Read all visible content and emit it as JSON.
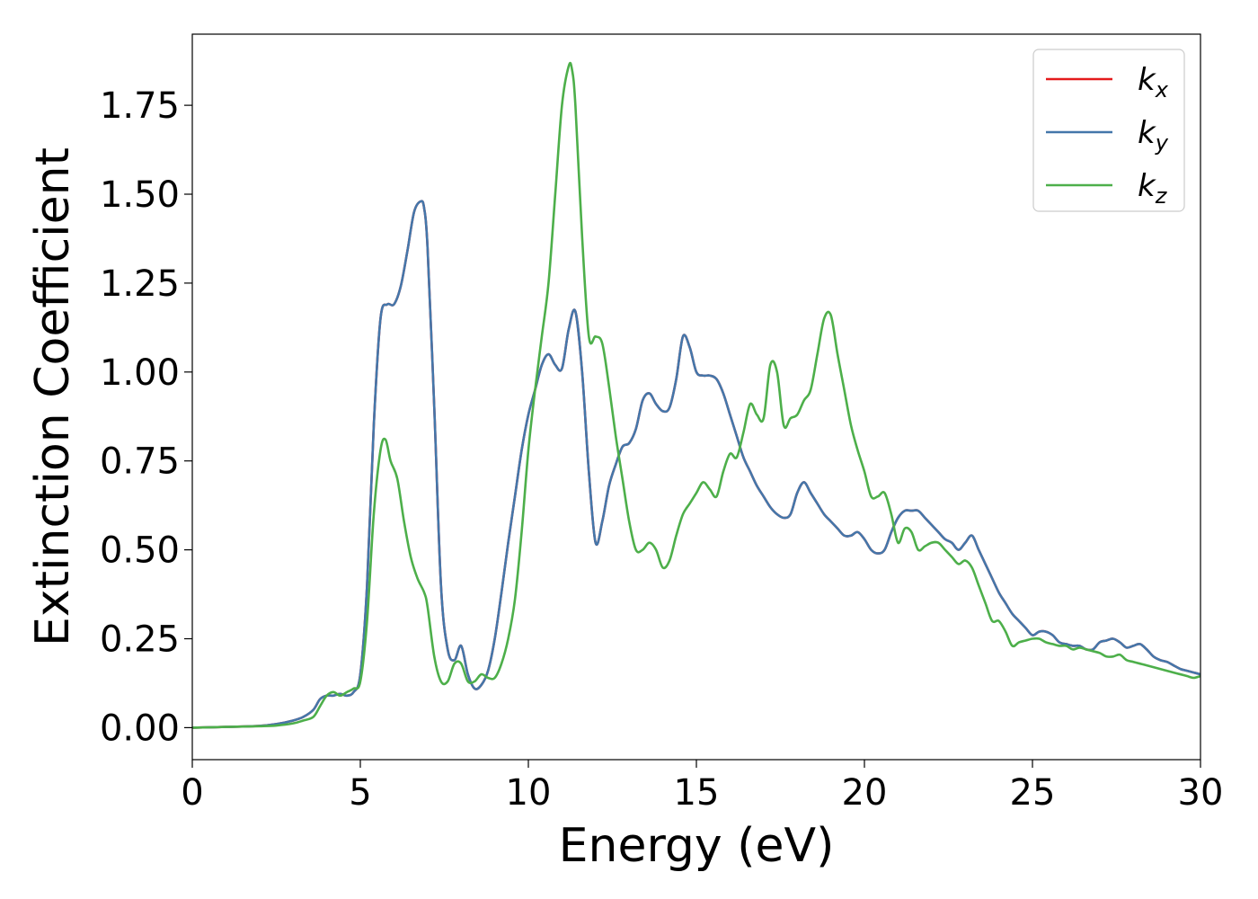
{
  "chart_data": {
    "type": "line",
    "xlabel": "Energy (eV)",
    "ylabel": "Extinction Coefficient",
    "xlim": [
      0,
      30
    ],
    "ylim": [
      -0.09,
      1.95
    ],
    "xticks": [
      0,
      5,
      10,
      15,
      20,
      25,
      30
    ],
    "xtick_labels": [
      "0",
      "5",
      "10",
      "15",
      "20",
      "25",
      "30"
    ],
    "yticks": [
      0,
      0.25,
      0.5,
      0.75,
      1.0,
      1.25,
      1.5,
      1.75
    ],
    "ytick_labels": [
      "0.00",
      "0.25",
      "0.50",
      "0.75",
      "1.00",
      "1.25",
      "1.50",
      "1.75"
    ],
    "grid": false,
    "legend_position": "top-right",
    "series": [
      {
        "name": "k_x",
        "label_base": "k",
        "label_sub": "x",
        "color": "#e41a1c",
        "x": [
          0,
          1,
          2,
          2.5,
          3,
          3.3,
          3.6,
          3.8,
          4.0,
          4.2,
          4.4,
          4.6,
          4.8,
          5.0,
          5.2,
          5.4,
          5.6,
          5.8,
          6.0,
          6.2,
          6.4,
          6.6,
          6.8,
          6.9,
          7.0,
          7.2,
          7.4,
          7.6,
          7.8,
          8.0,
          8.2,
          8.4,
          8.6,
          8.8,
          9.0,
          9.2,
          9.4,
          9.6,
          9.8,
          10.0,
          10.2,
          10.4,
          10.6,
          10.8,
          11.0,
          11.2,
          11.4,
          11.6,
          11.8,
          12.0,
          12.2,
          12.4,
          12.6,
          12.8,
          13.0,
          13.2,
          13.4,
          13.6,
          13.8,
          14.0,
          14.2,
          14.4,
          14.6,
          14.8,
          15.0,
          15.2,
          15.4,
          15.6,
          15.8,
          16.0,
          16.2,
          16.4,
          16.6,
          16.8,
          17.0,
          17.2,
          17.4,
          17.6,
          17.8,
          18.0,
          18.2,
          18.4,
          18.6,
          18.8,
          19.0,
          19.2,
          19.4,
          19.6,
          19.8,
          20.0,
          20.2,
          20.4,
          20.6,
          20.8,
          21.0,
          21.2,
          21.4,
          21.6,
          21.8,
          22.0,
          22.2,
          22.4,
          22.6,
          22.8,
          23.0,
          23.2,
          23.4,
          23.6,
          23.8,
          24.0,
          24.2,
          24.4,
          24.6,
          24.8,
          25.0,
          25.2,
          25.4,
          25.6,
          25.8,
          26.0,
          26.2,
          26.4,
          26.6,
          26.8,
          27.0,
          27.2,
          27.4,
          27.6,
          27.8,
          28.0,
          28.2,
          28.4,
          28.6,
          28.8,
          29.0,
          29.2,
          29.4,
          29.6,
          29.8,
          30.0
        ],
        "y": [
          0.0,
          0.002,
          0.005,
          0.01,
          0.02,
          0.03,
          0.05,
          0.08,
          0.09,
          0.09,
          0.095,
          0.09,
          0.1,
          0.15,
          0.4,
          0.85,
          1.15,
          1.19,
          1.19,
          1.24,
          1.34,
          1.45,
          1.48,
          1.46,
          1.35,
          0.9,
          0.4,
          0.22,
          0.19,
          0.23,
          0.15,
          0.11,
          0.12,
          0.16,
          0.25,
          0.38,
          0.52,
          0.65,
          0.78,
          0.88,
          0.95,
          1.02,
          1.05,
          1.02,
          1.01,
          1.12,
          1.17,
          1.0,
          0.72,
          0.52,
          0.58,
          0.68,
          0.74,
          0.79,
          0.8,
          0.84,
          0.92,
          0.94,
          0.91,
          0.89,
          0.9,
          0.98,
          1.1,
          1.07,
          1.0,
          0.99,
          0.99,
          0.98,
          0.94,
          0.88,
          0.82,
          0.76,
          0.72,
          0.68,
          0.65,
          0.62,
          0.6,
          0.59,
          0.6,
          0.66,
          0.69,
          0.66,
          0.63,
          0.6,
          0.58,
          0.56,
          0.54,
          0.54,
          0.55,
          0.53,
          0.5,
          0.49,
          0.5,
          0.55,
          0.59,
          0.61,
          0.61,
          0.61,
          0.59,
          0.57,
          0.55,
          0.53,
          0.52,
          0.5,
          0.52,
          0.54,
          0.5,
          0.46,
          0.42,
          0.38,
          0.35,
          0.32,
          0.3,
          0.28,
          0.26,
          0.27,
          0.27,
          0.26,
          0.24,
          0.235,
          0.23,
          0.23,
          0.22,
          0.22,
          0.24,
          0.245,
          0.25,
          0.24,
          0.225,
          0.23,
          0.235,
          0.22,
          0.2,
          0.19,
          0.185,
          0.175,
          0.165,
          0.16,
          0.155,
          0.15
        ]
      },
      {
        "name": "k_y",
        "label_base": "k",
        "label_sub": "y",
        "color": "#4477aa",
        "x": [
          0,
          1,
          2,
          2.5,
          3,
          3.3,
          3.6,
          3.8,
          4.0,
          4.2,
          4.4,
          4.6,
          4.8,
          5.0,
          5.2,
          5.4,
          5.6,
          5.8,
          6.0,
          6.2,
          6.4,
          6.6,
          6.8,
          6.9,
          7.0,
          7.2,
          7.4,
          7.6,
          7.8,
          8.0,
          8.2,
          8.4,
          8.6,
          8.8,
          9.0,
          9.2,
          9.4,
          9.6,
          9.8,
          10.0,
          10.2,
          10.4,
          10.6,
          10.8,
          11.0,
          11.2,
          11.4,
          11.6,
          11.8,
          12.0,
          12.2,
          12.4,
          12.6,
          12.8,
          13.0,
          13.2,
          13.4,
          13.6,
          13.8,
          14.0,
          14.2,
          14.4,
          14.6,
          14.8,
          15.0,
          15.2,
          15.4,
          15.6,
          15.8,
          16.0,
          16.2,
          16.4,
          16.6,
          16.8,
          17.0,
          17.2,
          17.4,
          17.6,
          17.8,
          18.0,
          18.2,
          18.4,
          18.6,
          18.8,
          19.0,
          19.2,
          19.4,
          19.6,
          19.8,
          20.0,
          20.2,
          20.4,
          20.6,
          20.8,
          21.0,
          21.2,
          21.4,
          21.6,
          21.8,
          22.0,
          22.2,
          22.4,
          22.6,
          22.8,
          23.0,
          23.2,
          23.4,
          23.6,
          23.8,
          24.0,
          24.2,
          24.4,
          24.6,
          24.8,
          25.0,
          25.2,
          25.4,
          25.6,
          25.8,
          26.0,
          26.2,
          26.4,
          26.6,
          26.8,
          27.0,
          27.2,
          27.4,
          27.6,
          27.8,
          28.0,
          28.2,
          28.4,
          28.6,
          28.8,
          29.0,
          29.2,
          29.4,
          29.6,
          29.8,
          30.0
        ],
        "y": [
          0.0,
          0.002,
          0.005,
          0.01,
          0.02,
          0.03,
          0.05,
          0.08,
          0.09,
          0.09,
          0.095,
          0.09,
          0.1,
          0.15,
          0.4,
          0.85,
          1.15,
          1.19,
          1.19,
          1.24,
          1.34,
          1.45,
          1.48,
          1.46,
          1.35,
          0.9,
          0.4,
          0.22,
          0.19,
          0.23,
          0.15,
          0.11,
          0.12,
          0.16,
          0.25,
          0.38,
          0.52,
          0.65,
          0.78,
          0.88,
          0.95,
          1.02,
          1.05,
          1.02,
          1.01,
          1.12,
          1.17,
          1.0,
          0.72,
          0.52,
          0.58,
          0.68,
          0.74,
          0.79,
          0.8,
          0.84,
          0.92,
          0.94,
          0.91,
          0.89,
          0.9,
          0.98,
          1.1,
          1.07,
          1.0,
          0.99,
          0.99,
          0.98,
          0.94,
          0.88,
          0.82,
          0.76,
          0.72,
          0.68,
          0.65,
          0.62,
          0.6,
          0.59,
          0.6,
          0.66,
          0.69,
          0.66,
          0.63,
          0.6,
          0.58,
          0.56,
          0.54,
          0.54,
          0.55,
          0.53,
          0.5,
          0.49,
          0.5,
          0.55,
          0.59,
          0.61,
          0.61,
          0.61,
          0.59,
          0.57,
          0.55,
          0.53,
          0.52,
          0.5,
          0.52,
          0.54,
          0.5,
          0.46,
          0.42,
          0.38,
          0.35,
          0.32,
          0.3,
          0.28,
          0.26,
          0.27,
          0.27,
          0.26,
          0.24,
          0.235,
          0.23,
          0.23,
          0.22,
          0.22,
          0.24,
          0.245,
          0.25,
          0.24,
          0.225,
          0.23,
          0.235,
          0.22,
          0.2,
          0.19,
          0.185,
          0.175,
          0.165,
          0.16,
          0.155,
          0.15
        ]
      },
      {
        "name": "k_z",
        "label_base": "k",
        "label_sub": "z",
        "color": "#4daf4a",
        "x": [
          0,
          1,
          2,
          2.5,
          3,
          3.3,
          3.6,
          3.8,
          4.0,
          4.2,
          4.4,
          4.6,
          4.8,
          5.0,
          5.2,
          5.4,
          5.6,
          5.75,
          5.9,
          6.1,
          6.3,
          6.5,
          6.7,
          6.9,
          7.0,
          7.2,
          7.4,
          7.6,
          7.8,
          8.0,
          8.2,
          8.4,
          8.6,
          8.8,
          9.0,
          9.2,
          9.4,
          9.6,
          9.8,
          10.0,
          10.2,
          10.4,
          10.6,
          10.8,
          11.0,
          11.2,
          11.3,
          11.4,
          11.6,
          11.8,
          12.0,
          12.2,
          12.4,
          12.6,
          12.8,
          13.0,
          13.2,
          13.4,
          13.6,
          13.8,
          14.0,
          14.2,
          14.4,
          14.6,
          14.8,
          15.0,
          15.2,
          15.4,
          15.6,
          15.8,
          16.0,
          16.2,
          16.4,
          16.6,
          16.8,
          17.0,
          17.2,
          17.4,
          17.6,
          17.8,
          18.0,
          18.2,
          18.4,
          18.6,
          18.8,
          19.0,
          19.2,
          19.4,
          19.6,
          19.8,
          20.0,
          20.2,
          20.4,
          20.6,
          20.8,
          21.0,
          21.2,
          21.4,
          21.6,
          21.8,
          22.0,
          22.2,
          22.4,
          22.6,
          22.8,
          23.0,
          23.2,
          23.4,
          23.6,
          23.8,
          24.0,
          24.2,
          24.4,
          24.6,
          24.8,
          25.0,
          25.2,
          25.4,
          25.6,
          25.8,
          26.0,
          26.2,
          26.4,
          26.6,
          26.8,
          27.0,
          27.2,
          27.4,
          27.6,
          27.8,
          28.0,
          28.2,
          28.4,
          28.6,
          28.8,
          29.0,
          29.2,
          29.4,
          29.6,
          29.8,
          30.0
        ],
        "y": [
          0.0,
          0.002,
          0.004,
          0.006,
          0.012,
          0.02,
          0.03,
          0.06,
          0.09,
          0.1,
          0.09,
          0.1,
          0.11,
          0.13,
          0.3,
          0.6,
          0.78,
          0.81,
          0.75,
          0.7,
          0.58,
          0.48,
          0.42,
          0.38,
          0.34,
          0.2,
          0.13,
          0.13,
          0.18,
          0.18,
          0.13,
          0.13,
          0.15,
          0.14,
          0.14,
          0.18,
          0.25,
          0.36,
          0.55,
          0.78,
          0.95,
          1.1,
          1.25,
          1.5,
          1.75,
          1.86,
          1.85,
          1.75,
          1.38,
          1.1,
          1.1,
          1.08,
          0.96,
          0.82,
          0.7,
          0.58,
          0.5,
          0.5,
          0.52,
          0.5,
          0.45,
          0.47,
          0.54,
          0.6,
          0.63,
          0.66,
          0.69,
          0.67,
          0.65,
          0.72,
          0.77,
          0.76,
          0.83,
          0.91,
          0.88,
          0.87,
          1.02,
          1.0,
          0.85,
          0.87,
          0.88,
          0.92,
          0.95,
          1.05,
          1.15,
          1.16,
          1.05,
          0.95,
          0.85,
          0.78,
          0.72,
          0.65,
          0.65,
          0.66,
          0.6,
          0.52,
          0.56,
          0.55,
          0.5,
          0.51,
          0.52,
          0.52,
          0.5,
          0.48,
          0.46,
          0.47,
          0.45,
          0.4,
          0.35,
          0.3,
          0.3,
          0.27,
          0.23,
          0.24,
          0.245,
          0.25,
          0.25,
          0.24,
          0.235,
          0.23,
          0.23,
          0.22,
          0.225,
          0.22,
          0.215,
          0.21,
          0.2,
          0.2,
          0.205,
          0.19,
          0.185,
          0.18,
          0.175,
          0.17,
          0.165,
          0.16,
          0.155,
          0.15,
          0.145,
          0.14,
          0.145
        ]
      }
    ]
  }
}
